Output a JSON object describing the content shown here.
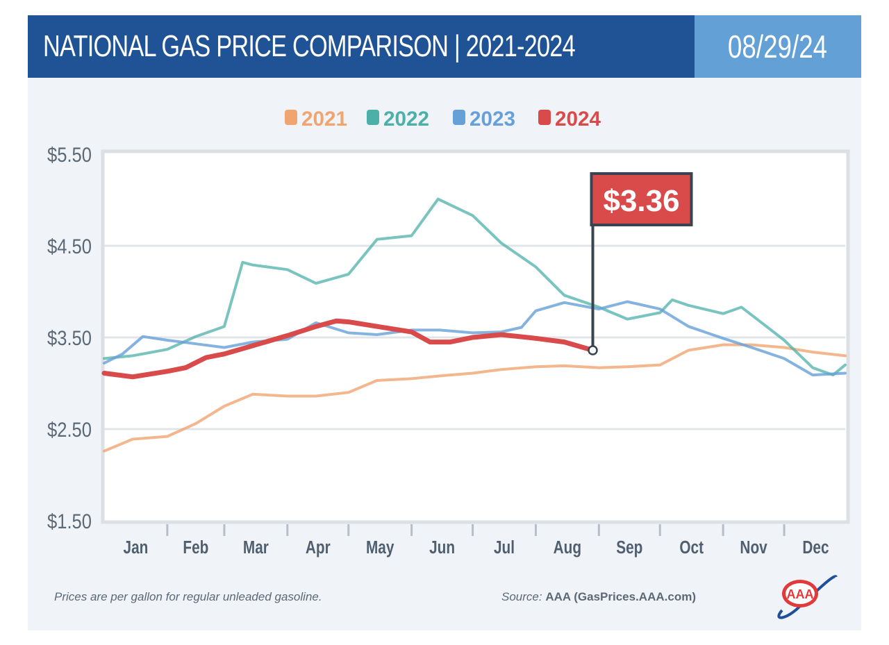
{
  "header": {
    "title": "NATIONAL GAS PRICE COMPARISON | 2021-2024",
    "date": "08/29/24"
  },
  "footer": {
    "note": "Prices are per gallon for regular unleaded gasoline.",
    "source_label": "Source:",
    "source_value": "AAA (GasPrices.AAA.com)",
    "logo_text": "AAA"
  },
  "chart_data": {
    "type": "line",
    "title": "NATIONAL GAS PRICE COMPARISON | 2021-2024",
    "xlabel": "",
    "ylabel": "",
    "ylim": [
      1.5,
      5.5
    ],
    "y_ticks": [
      "$5.50",
      "$4.50",
      "$3.50",
      "$2.50",
      "$1.50"
    ],
    "y_tick_values": [
      5.5,
      4.5,
      3.5,
      2.5,
      1.5
    ],
    "x_ticks": [
      "Jan",
      "Feb",
      "Mar",
      "Apr",
      "May",
      "Jun",
      "Jul",
      "Aug",
      "Sep",
      "Oct",
      "Nov",
      "Dec"
    ],
    "grid": true,
    "legend": "top-center",
    "annotation": {
      "label": "$3.36",
      "series": "2024",
      "x": "08-29",
      "y": 3.36
    },
    "series": [
      {
        "name": "2021",
        "color": "#f0a470",
        "x": [
          "01-01",
          "01-15",
          "02-01",
          "02-15",
          "03-01",
          "03-15",
          "04-01",
          "04-15",
          "05-01",
          "05-15",
          "06-01",
          "06-15",
          "07-01",
          "07-15",
          "08-01",
          "08-15",
          "09-01",
          "09-15",
          "10-01",
          "10-15",
          "11-01",
          "11-15",
          "12-01",
          "12-15",
          "12-31"
        ],
        "values": [
          2.26,
          2.39,
          2.42,
          2.56,
          2.75,
          2.88,
          2.86,
          2.86,
          2.9,
          3.03,
          3.05,
          3.08,
          3.11,
          3.15,
          3.18,
          3.19,
          3.17,
          3.18,
          3.2,
          3.36,
          3.42,
          3.42,
          3.39,
          3.34,
          3.3
        ]
      },
      {
        "name": "2022",
        "color": "#4cb0a8",
        "x": [
          "01-01",
          "01-15",
          "02-01",
          "02-15",
          "03-01",
          "03-10",
          "03-15",
          "04-01",
          "04-15",
          "05-01",
          "05-15",
          "06-01",
          "06-14",
          "07-01",
          "07-15",
          "08-01",
          "08-15",
          "09-01",
          "09-15",
          "10-01",
          "10-07",
          "10-15",
          "11-01",
          "11-10",
          "11-20",
          "12-01",
          "12-15",
          "12-25",
          "12-31"
        ],
        "values": [
          3.27,
          3.3,
          3.37,
          3.51,
          3.62,
          4.32,
          4.29,
          4.24,
          4.09,
          4.19,
          4.57,
          4.61,
          5.01,
          4.83,
          4.53,
          4.27,
          3.96,
          3.83,
          3.7,
          3.77,
          3.91,
          3.85,
          3.76,
          3.83,
          3.66,
          3.47,
          3.17,
          3.09,
          3.2
        ]
      },
      {
        "name": "2023",
        "color": "#66a0d8",
        "x": [
          "01-01",
          "01-10",
          "01-20",
          "02-01",
          "02-15",
          "03-01",
          "03-15",
          "04-01",
          "04-15",
          "05-01",
          "05-15",
          "06-01",
          "06-15",
          "07-01",
          "07-15",
          "07-25",
          "08-01",
          "08-15",
          "09-01",
          "09-15",
          "10-01",
          "10-15",
          "11-01",
          "11-15",
          "12-01",
          "12-15",
          "12-31"
        ],
        "values": [
          3.22,
          3.32,
          3.51,
          3.47,
          3.43,
          3.39,
          3.45,
          3.48,
          3.66,
          3.55,
          3.53,
          3.58,
          3.58,
          3.55,
          3.56,
          3.61,
          3.79,
          3.88,
          3.81,
          3.89,
          3.81,
          3.62,
          3.49,
          3.39,
          3.27,
          3.09,
          3.11
        ]
      },
      {
        "name": "2024",
        "color": "#d94b4b",
        "x": [
          "01-01",
          "01-15",
          "02-01",
          "02-10",
          "02-20",
          "03-01",
          "03-15",
          "04-01",
          "04-15",
          "04-25",
          "05-01",
          "05-15",
          "06-01",
          "06-10",
          "06-20",
          "07-01",
          "07-15",
          "08-01",
          "08-15",
          "08-29"
        ],
        "values": [
          3.11,
          3.07,
          3.13,
          3.17,
          3.28,
          3.32,
          3.41,
          3.52,
          3.62,
          3.68,
          3.67,
          3.62,
          3.56,
          3.45,
          3.45,
          3.5,
          3.53,
          3.49,
          3.45,
          3.36
        ]
      }
    ]
  }
}
